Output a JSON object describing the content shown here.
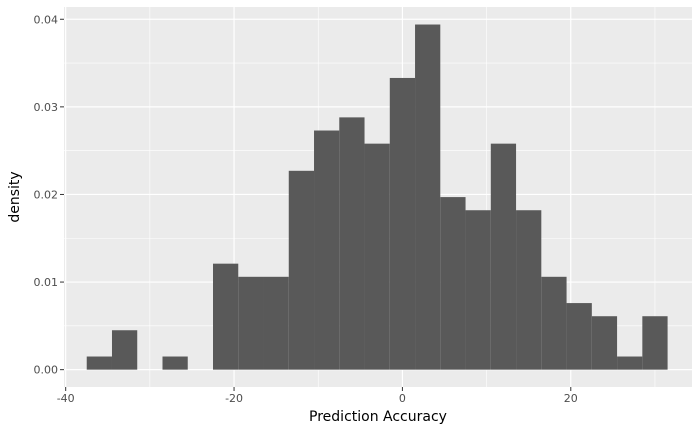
{
  "chart_data": {
    "type": "histogram",
    "xlabel": "Prediction Accuracy",
    "ylabel": "density",
    "xlim": [
      -40.2,
      34.4
    ],
    "ylim": [
      -0.00198,
      0.0414
    ],
    "x_ticks": [
      -40,
      -20,
      0,
      20
    ],
    "x_tick_labels": [
      "-40",
      "-20",
      "0",
      "20"
    ],
    "y_ticks": [
      0.0,
      0.01,
      0.02,
      0.03,
      0.04
    ],
    "y_tick_labels": [
      "0.00",
      "0.01",
      "0.02",
      "0.03",
      "0.04"
    ],
    "grid": true,
    "bin_width": 3.0,
    "bins": [
      {
        "x0": -37.5,
        "x1": -34.5,
        "density": 0.0015
      },
      {
        "x0": -34.5,
        "x1": -31.5,
        "density": 0.0045
      },
      {
        "x0": -31.5,
        "x1": -28.5,
        "density": 0.0
      },
      {
        "x0": -28.5,
        "x1": -25.5,
        "density": 0.0015
      },
      {
        "x0": -25.5,
        "x1": -22.5,
        "density": 0.0
      },
      {
        "x0": -22.5,
        "x1": -19.5,
        "density": 0.0121
      },
      {
        "x0": -19.5,
        "x1": -16.5,
        "density": 0.0106
      },
      {
        "x0": -16.5,
        "x1": -13.5,
        "density": 0.0106
      },
      {
        "x0": -13.5,
        "x1": -10.5,
        "density": 0.0227
      },
      {
        "x0": -10.5,
        "x1": -7.5,
        "density": 0.0273
      },
      {
        "x0": -7.5,
        "x1": -4.5,
        "density": 0.0288
      },
      {
        "x0": -4.5,
        "x1": -1.5,
        "density": 0.0258
      },
      {
        "x0": -1.5,
        "x1": 1.5,
        "density": 0.0333
      },
      {
        "x0": 1.5,
        "x1": 4.5,
        "density": 0.0394
      },
      {
        "x0": 4.5,
        "x1": 7.5,
        "density": 0.0197
      },
      {
        "x0": 7.5,
        "x1": 10.5,
        "density": 0.0182
      },
      {
        "x0": 10.5,
        "x1": 13.5,
        "density": 0.0258
      },
      {
        "x0": 13.5,
        "x1": 16.5,
        "density": 0.0182
      },
      {
        "x0": 16.5,
        "x1": 19.5,
        "density": 0.0106
      },
      {
        "x0": 19.5,
        "x1": 22.5,
        "density": 0.0076
      },
      {
        "x0": 22.5,
        "x1": 25.5,
        "density": 0.0061
      },
      {
        "x0": 25.5,
        "x1": 28.5,
        "density": 0.0015
      },
      {
        "x0": 28.5,
        "x1": 31.5,
        "density": 0.0061
      }
    ],
    "colors": {
      "panel_background": "#ebebeb",
      "grid_major": "#ffffff",
      "bar_fill": "#595959",
      "tick_text": "#4d4d4d",
      "axis_title": "#000000"
    }
  }
}
